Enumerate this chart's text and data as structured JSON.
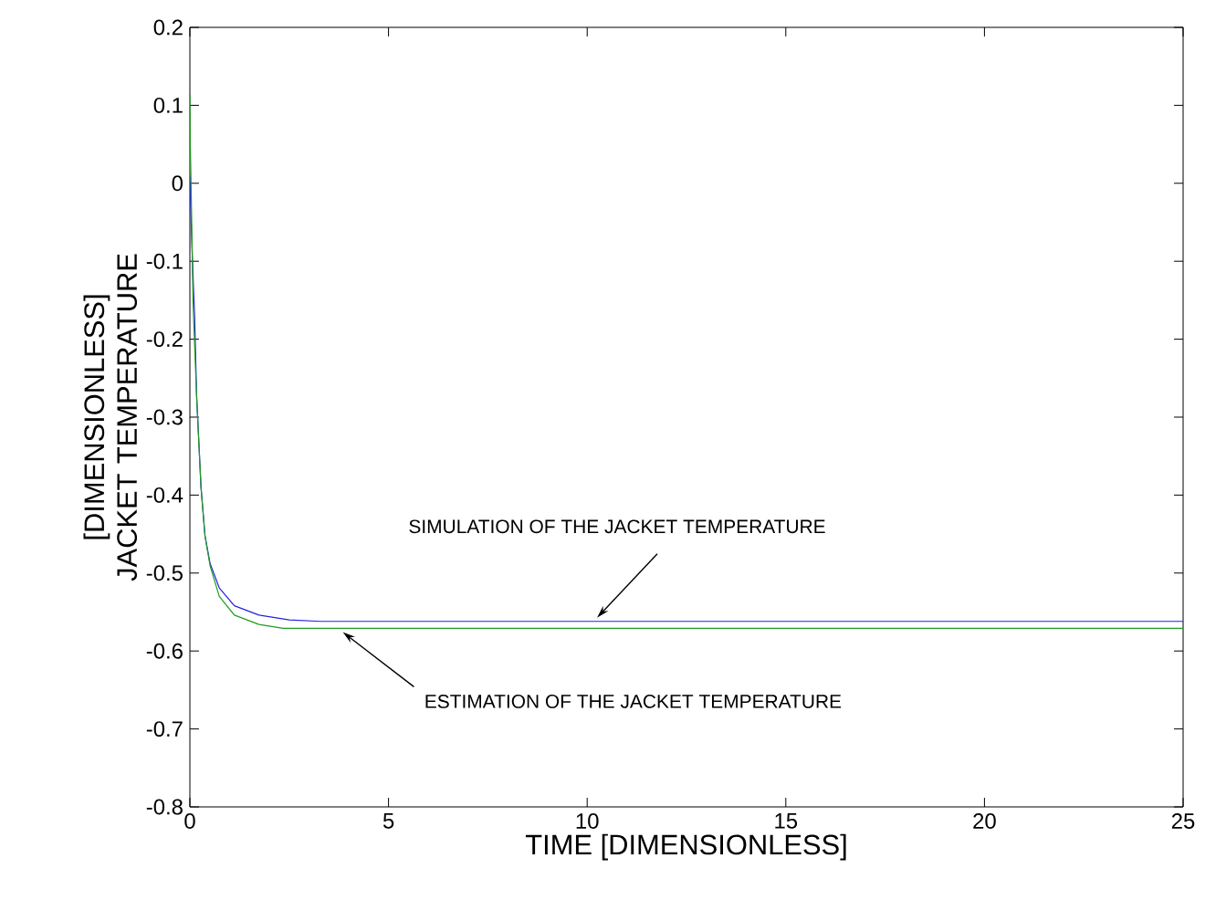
{
  "chart_data": {
    "type": "line",
    "xlabel": "TIME [DIMENSIONLESS]",
    "ylabel": "[DIMENSIONLESS] JACKET TEMPERATURE",
    "xlim": [
      0,
      25
    ],
    "ylim": [
      -0.8,
      0.2
    ],
    "xticks": [
      0,
      5,
      10,
      15,
      20,
      25
    ],
    "yticks": [
      -0.8,
      -0.7,
      -0.6,
      -0.5,
      -0.4,
      -0.3,
      -0.2,
      -0.1,
      0,
      0.1,
      0.2
    ],
    "marker": "none",
    "line_style": "solid",
    "series": [
      {
        "color": "#2323e0",
        "x": [
          0,
          0.02,
          0.05,
          0.08,
          0.12,
          0.17,
          0.28,
          0.38,
          0.51,
          0.74,
          1.12,
          1.74,
          2.5,
          3.3,
          25
        ],
        "values": [
          0.01,
          -0.03,
          -0.077,
          -0.12,
          -0.171,
          -0.273,
          -0.39,
          -0.452,
          -0.488,
          -0.519,
          -0.542,
          -0.554,
          -0.56,
          -0.562,
          -0.562
        ]
      },
      {
        "color": "#1f9a1f",
        "x": [
          0,
          0.01,
          0.03,
          0.08,
          0.17,
          0.28,
          0.38,
          0.51,
          0.74,
          1.12,
          1.74,
          2.35,
          25
        ],
        "values": [
          0.114,
          0.05,
          0.0,
          -0.155,
          -0.273,
          -0.39,
          -0.452,
          -0.491,
          -0.53,
          -0.554,
          -0.566,
          -0.571,
          -0.571
        ]
      }
    ],
    "annotations": [
      {
        "text": "SIMULATION OF THE JACKET TEMPERATURE",
        "x": 10.2,
        "y": -0.562
      },
      {
        "text": "ESTIMATION OF THE JACKET TEMPERATURE",
        "x": 3.8,
        "y": -0.571
      }
    ]
  }
}
